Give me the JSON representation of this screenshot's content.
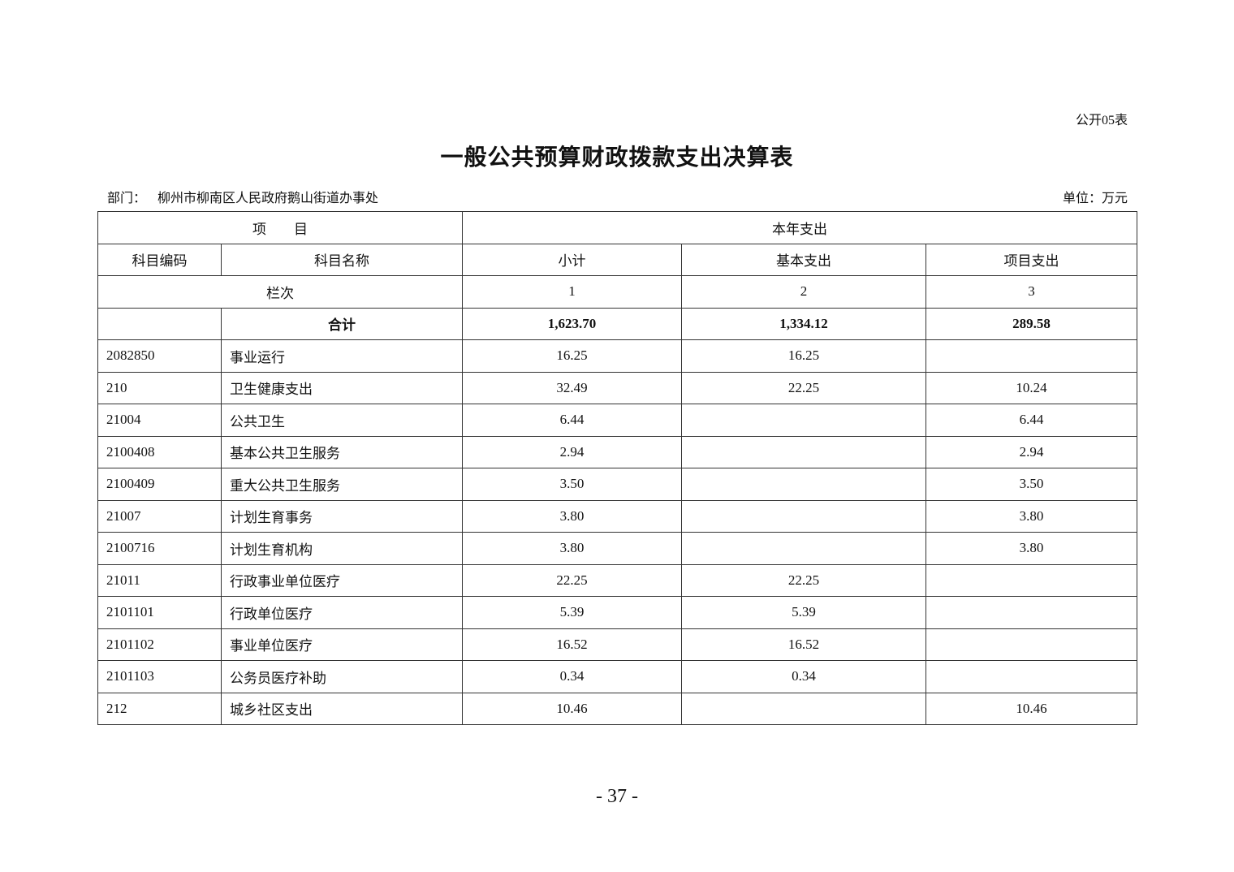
{
  "form_no": "公开05表",
  "title": "一般公共预算财政拨款支出决算表",
  "department_label": "部门：",
  "department": "柳州市柳南区人民政府鹅山街道办事处",
  "unit": "单位：万元",
  "header": {
    "item": "项　　目",
    "current_year": "本年支出",
    "code": "科目编码",
    "name": "科目名称",
    "subtotal": "小计",
    "basic": "基本支出",
    "project": "项目支出",
    "column_seq": "栏次",
    "col1": "1",
    "col2": "2",
    "col3": "3"
  },
  "total": {
    "label": "合计",
    "subtotal": "1,623.70",
    "basic": "1,334.12",
    "project": "289.58"
  },
  "rows": [
    {
      "code": "2082850",
      "name": "事业运行",
      "subtotal": "16.25",
      "basic": "16.25",
      "project": ""
    },
    {
      "code": "210",
      "name": "卫生健康支出",
      "subtotal": "32.49",
      "basic": "22.25",
      "project": "10.24"
    },
    {
      "code": "21004",
      "name": "公共卫生",
      "subtotal": "6.44",
      "basic": "",
      "project": "6.44"
    },
    {
      "code": "2100408",
      "name": "基本公共卫生服务",
      "subtotal": "2.94",
      "basic": "",
      "project": "2.94"
    },
    {
      "code": "2100409",
      "name": "重大公共卫生服务",
      "subtotal": "3.50",
      "basic": "",
      "project": "3.50"
    },
    {
      "code": "21007",
      "name": "计划生育事务",
      "subtotal": "3.80",
      "basic": "",
      "project": "3.80"
    },
    {
      "code": "2100716",
      "name": "计划生育机构",
      "subtotal": "3.80",
      "basic": "",
      "project": "3.80"
    },
    {
      "code": "21011",
      "name": "行政事业单位医疗",
      "subtotal": "22.25",
      "basic": "22.25",
      "project": ""
    },
    {
      "code": "2101101",
      "name": "行政单位医疗",
      "subtotal": "5.39",
      "basic": "5.39",
      "project": ""
    },
    {
      "code": "2101102",
      "name": "事业单位医疗",
      "subtotal": "16.52",
      "basic": "16.52",
      "project": ""
    },
    {
      "code": "2101103",
      "name": "公务员医疗补助",
      "subtotal": "0.34",
      "basic": "0.34",
      "project": ""
    },
    {
      "code": "212",
      "name": "城乡社区支出",
      "subtotal": "10.46",
      "basic": "",
      "project": "10.46"
    }
  ],
  "page_number": "- 37 -"
}
